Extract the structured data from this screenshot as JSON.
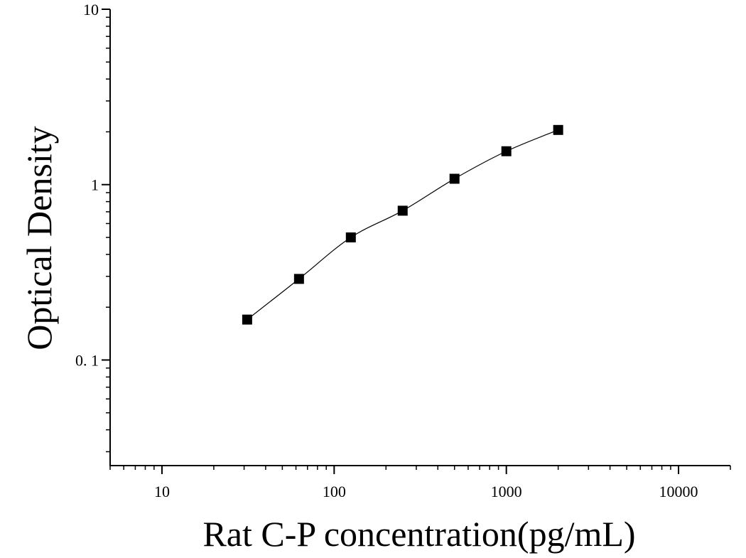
{
  "chart_data": {
    "type": "scatter",
    "title": "",
    "xlabel": "Rat C-P concentration(pg/mL)",
    "ylabel": "Optical Density",
    "x_scale": "log",
    "y_scale": "log",
    "xlim": [
      5,
      20000
    ],
    "ylim": [
      0.025,
      10
    ],
    "x_tick_labels": [
      "10",
      "100",
      "1000",
      "10000"
    ],
    "x_tick_values": [
      10,
      100,
      1000,
      10000
    ],
    "y_tick_labels": [
      "0. 1",
      "1",
      "10"
    ],
    "y_tick_values": [
      0.1,
      1,
      10
    ],
    "grid": false,
    "legend": "none",
    "series": [
      {
        "marker": "square",
        "color": "#000000",
        "fit_line": true,
        "x": [
          31.25,
          62.5,
          125,
          250,
          500,
          1000,
          2000
        ],
        "y": [
          0.17,
          0.29,
          0.5,
          0.71,
          1.08,
          1.55,
          2.05
        ]
      }
    ]
  }
}
